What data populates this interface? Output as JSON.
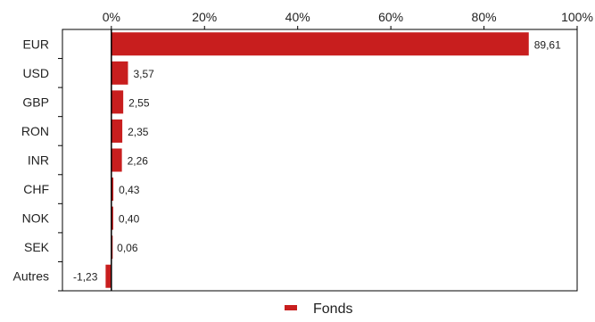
{
  "chart_data": {
    "type": "bar",
    "orientation": "horizontal",
    "categories": [
      "EUR",
      "USD",
      "GBP",
      "RON",
      "INR",
      "CHF",
      "NOK",
      "SEK",
      "Autres"
    ],
    "series": [
      {
        "name": "Fonds",
        "values": [
          89.61,
          3.57,
          2.55,
          2.35,
          2.26,
          0.43,
          0.4,
          0.06,
          -1.23
        ],
        "labels": [
          "89,61",
          "3,57",
          "2,55",
          "2,35",
          "2,26",
          "0,43",
          "0,40",
          "0,06",
          "-1,23"
        ],
        "color": "#c81e1e"
      }
    ],
    "xlim": [
      -10.5,
      100
    ],
    "x_ticks": [
      {
        "value": 0,
        "label": "0%"
      },
      {
        "value": 20,
        "label": "20%"
      },
      {
        "value": 40,
        "label": "40%"
      },
      {
        "value": 60,
        "label": "60%"
      },
      {
        "value": 80,
        "label": "80%"
      },
      {
        "value": 100,
        "label": "100%"
      }
    ],
    "x_axis_position": "top",
    "grid": false,
    "legend": {
      "position": "bottom-center",
      "entries": [
        "Fonds"
      ]
    }
  }
}
